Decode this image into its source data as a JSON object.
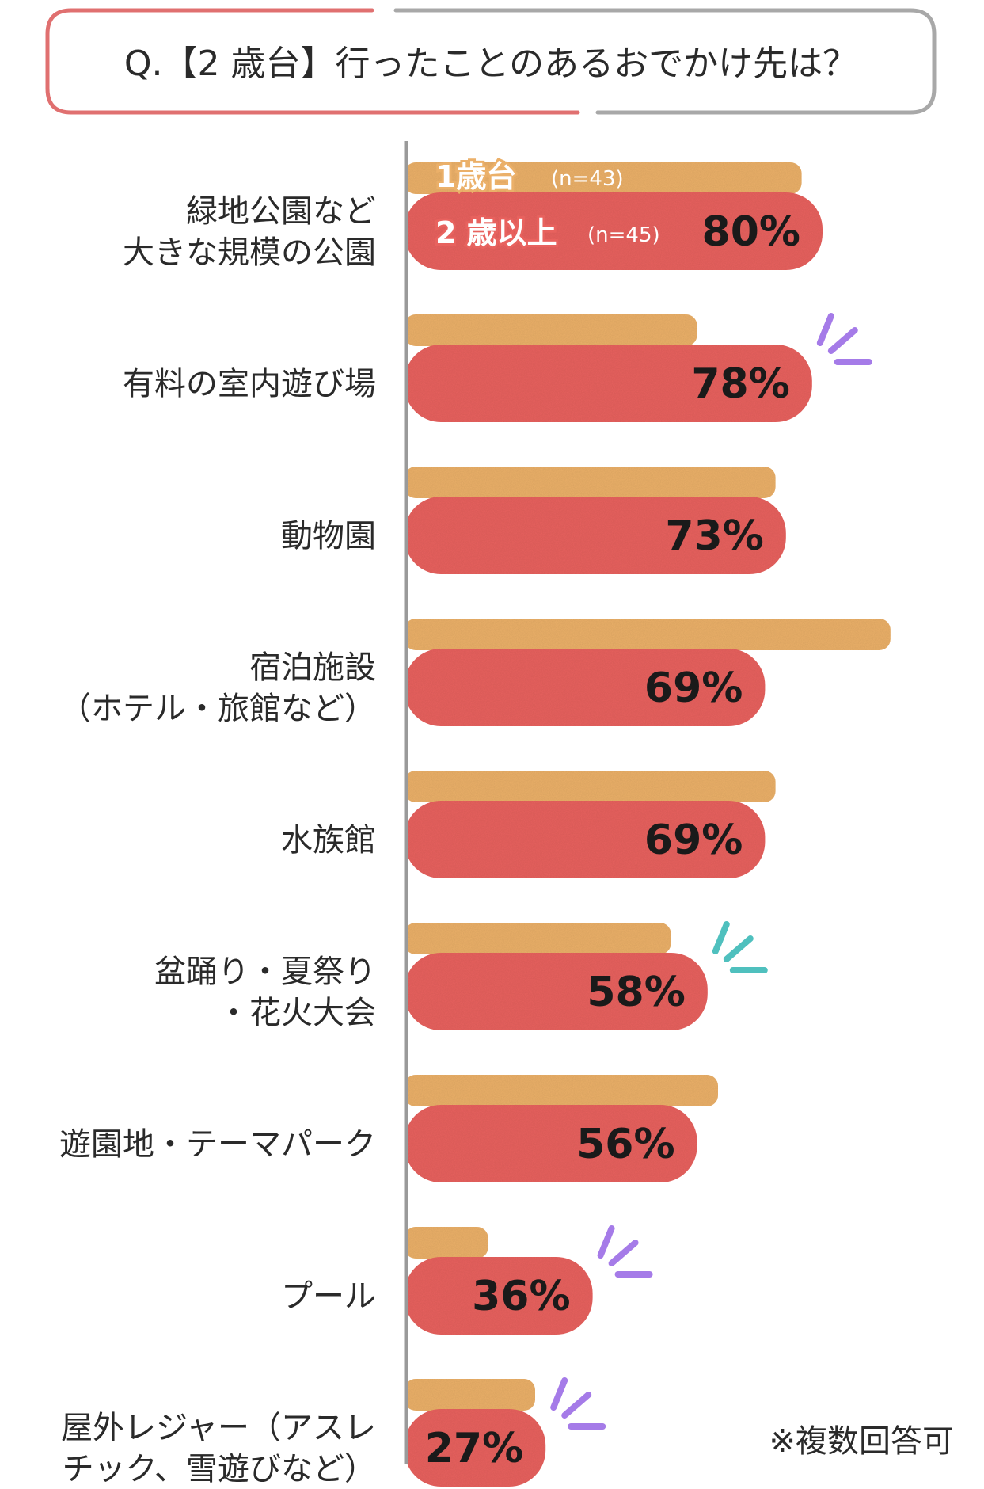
{
  "title": "Q.【2 歳台】行ったことのあるおでかけ先は？",
  "footnote": "※複数回答可",
  "colors": {
    "series_1": "#EBB069",
    "series_2": "#E8625E",
    "axis": "#9A9A9A",
    "title_border_left": "#E07070",
    "title_border_right": "#A8A8A8",
    "spark_purple": "#A57BE8",
    "spark_teal": "#4FC0BE"
  },
  "chart_data": {
    "type": "bar",
    "orientation": "horizontal",
    "title": "Q.【2 歳台】行ったことのあるおでかけ先は？",
    "categories": [
      [
        "緑地公園など",
        "大きな規模の公園"
      ],
      [
        "有料の室内遊び場"
      ],
      [
        "動物園"
      ],
      [
        "宿泊施設",
        "（ホテル・旅館など）"
      ],
      [
        "水族館"
      ],
      [
        "盆踊り・夏祭り",
        "・花火大会"
      ],
      [
        "遊園地・テーマパーク"
      ],
      [
        "プール"
      ],
      [
        "屋外レジャー（アスレ",
        "チック、雪遊びなど）"
      ]
    ],
    "series": [
      {
        "name": "1歳台",
        "n_label": "(n=43)",
        "values": [
          76,
          56,
          71,
          93,
          71,
          51,
          60,
          16,
          25
        ],
        "value_labels_shown": false
      },
      {
        "name": "2 歳以上",
        "n_label": "(n=45)",
        "values": [
          80,
          78,
          73,
          69,
          69,
          58,
          56,
          36,
          27
        ],
        "value_labels": [
          "80%",
          "78%",
          "73%",
          "69%",
          "69%",
          "58%",
          "56%",
          "36%",
          "27%"
        ],
        "value_labels_shown": true
      }
    ],
    "unit": "%",
    "xlim": [
      0,
      100
    ],
    "grid": false,
    "legend": "inside first category bars",
    "highlights": [
      {
        "category_index": 1,
        "icon": "sparkle-lines-icon",
        "color": "purple"
      },
      {
        "category_index": 5,
        "icon": "sparkle-lines-icon",
        "color": "teal"
      },
      {
        "category_index": 7,
        "icon": "sparkle-lines-icon",
        "color": "purple"
      },
      {
        "category_index": 8,
        "icon": "sparkle-lines-icon",
        "color": "purple"
      }
    ]
  }
}
